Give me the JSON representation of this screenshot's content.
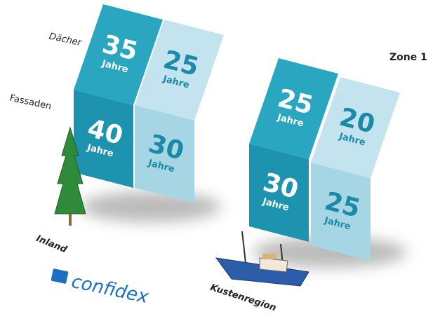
{
  "labels": {
    "roof": "Dächer",
    "facade": "Fassaden",
    "zone": "Zone 1",
    "inland": "Inland",
    "coast": "Kustenregion",
    "logo": "confidex"
  },
  "unit": "Jahre",
  "panels": [
    {
      "roof": 35,
      "facade": 40
    },
    {
      "roof": 25,
      "facade": 30
    },
    {
      "roof": 25,
      "facade": 30
    },
    {
      "roof": 20,
      "facade": 25
    }
  ]
}
